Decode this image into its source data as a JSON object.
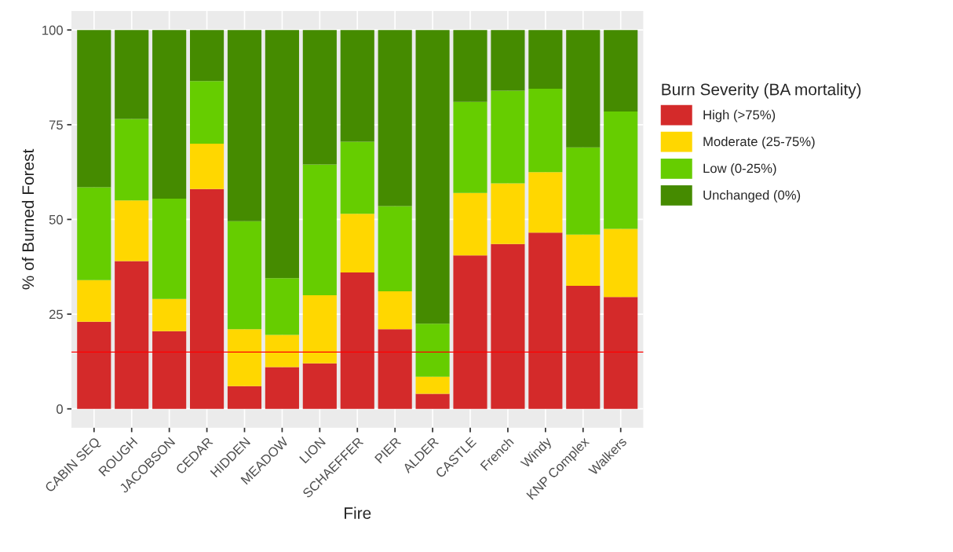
{
  "chart_data": {
    "type": "bar",
    "stacked": true,
    "xlabel": "Fire",
    "ylabel": "% of Burned Forest",
    "legend_title": "Burn Severity (BA mortality)",
    "categories": [
      "CABIN SEQ",
      "ROUGH",
      "JACOBSON",
      "CEDAR",
      "HIDDEN",
      "MEADOW",
      "LION",
      "SCHAEFFER",
      "PIER",
      "ALDER",
      "CASTLE",
      "French",
      "Windy",
      "KNP Complex",
      "Walkers"
    ],
    "series": [
      {
        "name": "High (>75%)",
        "color": "#d42a2a",
        "values": [
          23,
          39,
          20.5,
          58,
          6,
          11,
          12,
          36,
          21,
          4,
          40.5,
          43.5,
          46.5,
          32.5,
          29.5
        ]
      },
      {
        "name": "Moderate (25-75%)",
        "color": "#ffd700",
        "values": [
          11,
          16,
          8.5,
          12,
          15,
          8.5,
          18,
          15.5,
          10,
          4.5,
          16.5,
          16,
          16,
          13.5,
          18
        ]
      },
      {
        "name": "Low (0-25%)",
        "color": "#66cd00",
        "values": [
          24.5,
          21.5,
          26.5,
          16.5,
          28.5,
          15,
          34.5,
          19,
          22.5,
          14,
          24,
          24.5,
          22,
          23,
          31
        ]
      },
      {
        "name": "Unchanged (0%)",
        "color": "#458b00",
        "values": [
          41.5,
          23.5,
          44.5,
          13.5,
          50.5,
          65.5,
          35.5,
          29.5,
          46.5,
          77.5,
          19,
          16,
          15.5,
          31,
          21.5
        ]
      }
    ],
    "ylim": [
      -5,
      105
    ],
    "yticks": [
      0,
      25,
      50,
      75,
      100
    ],
    "grid": true,
    "legend": "right",
    "ref_lines": [
      {
        "axis": "y",
        "value": 15,
        "color": "#ff0000"
      }
    ]
  }
}
